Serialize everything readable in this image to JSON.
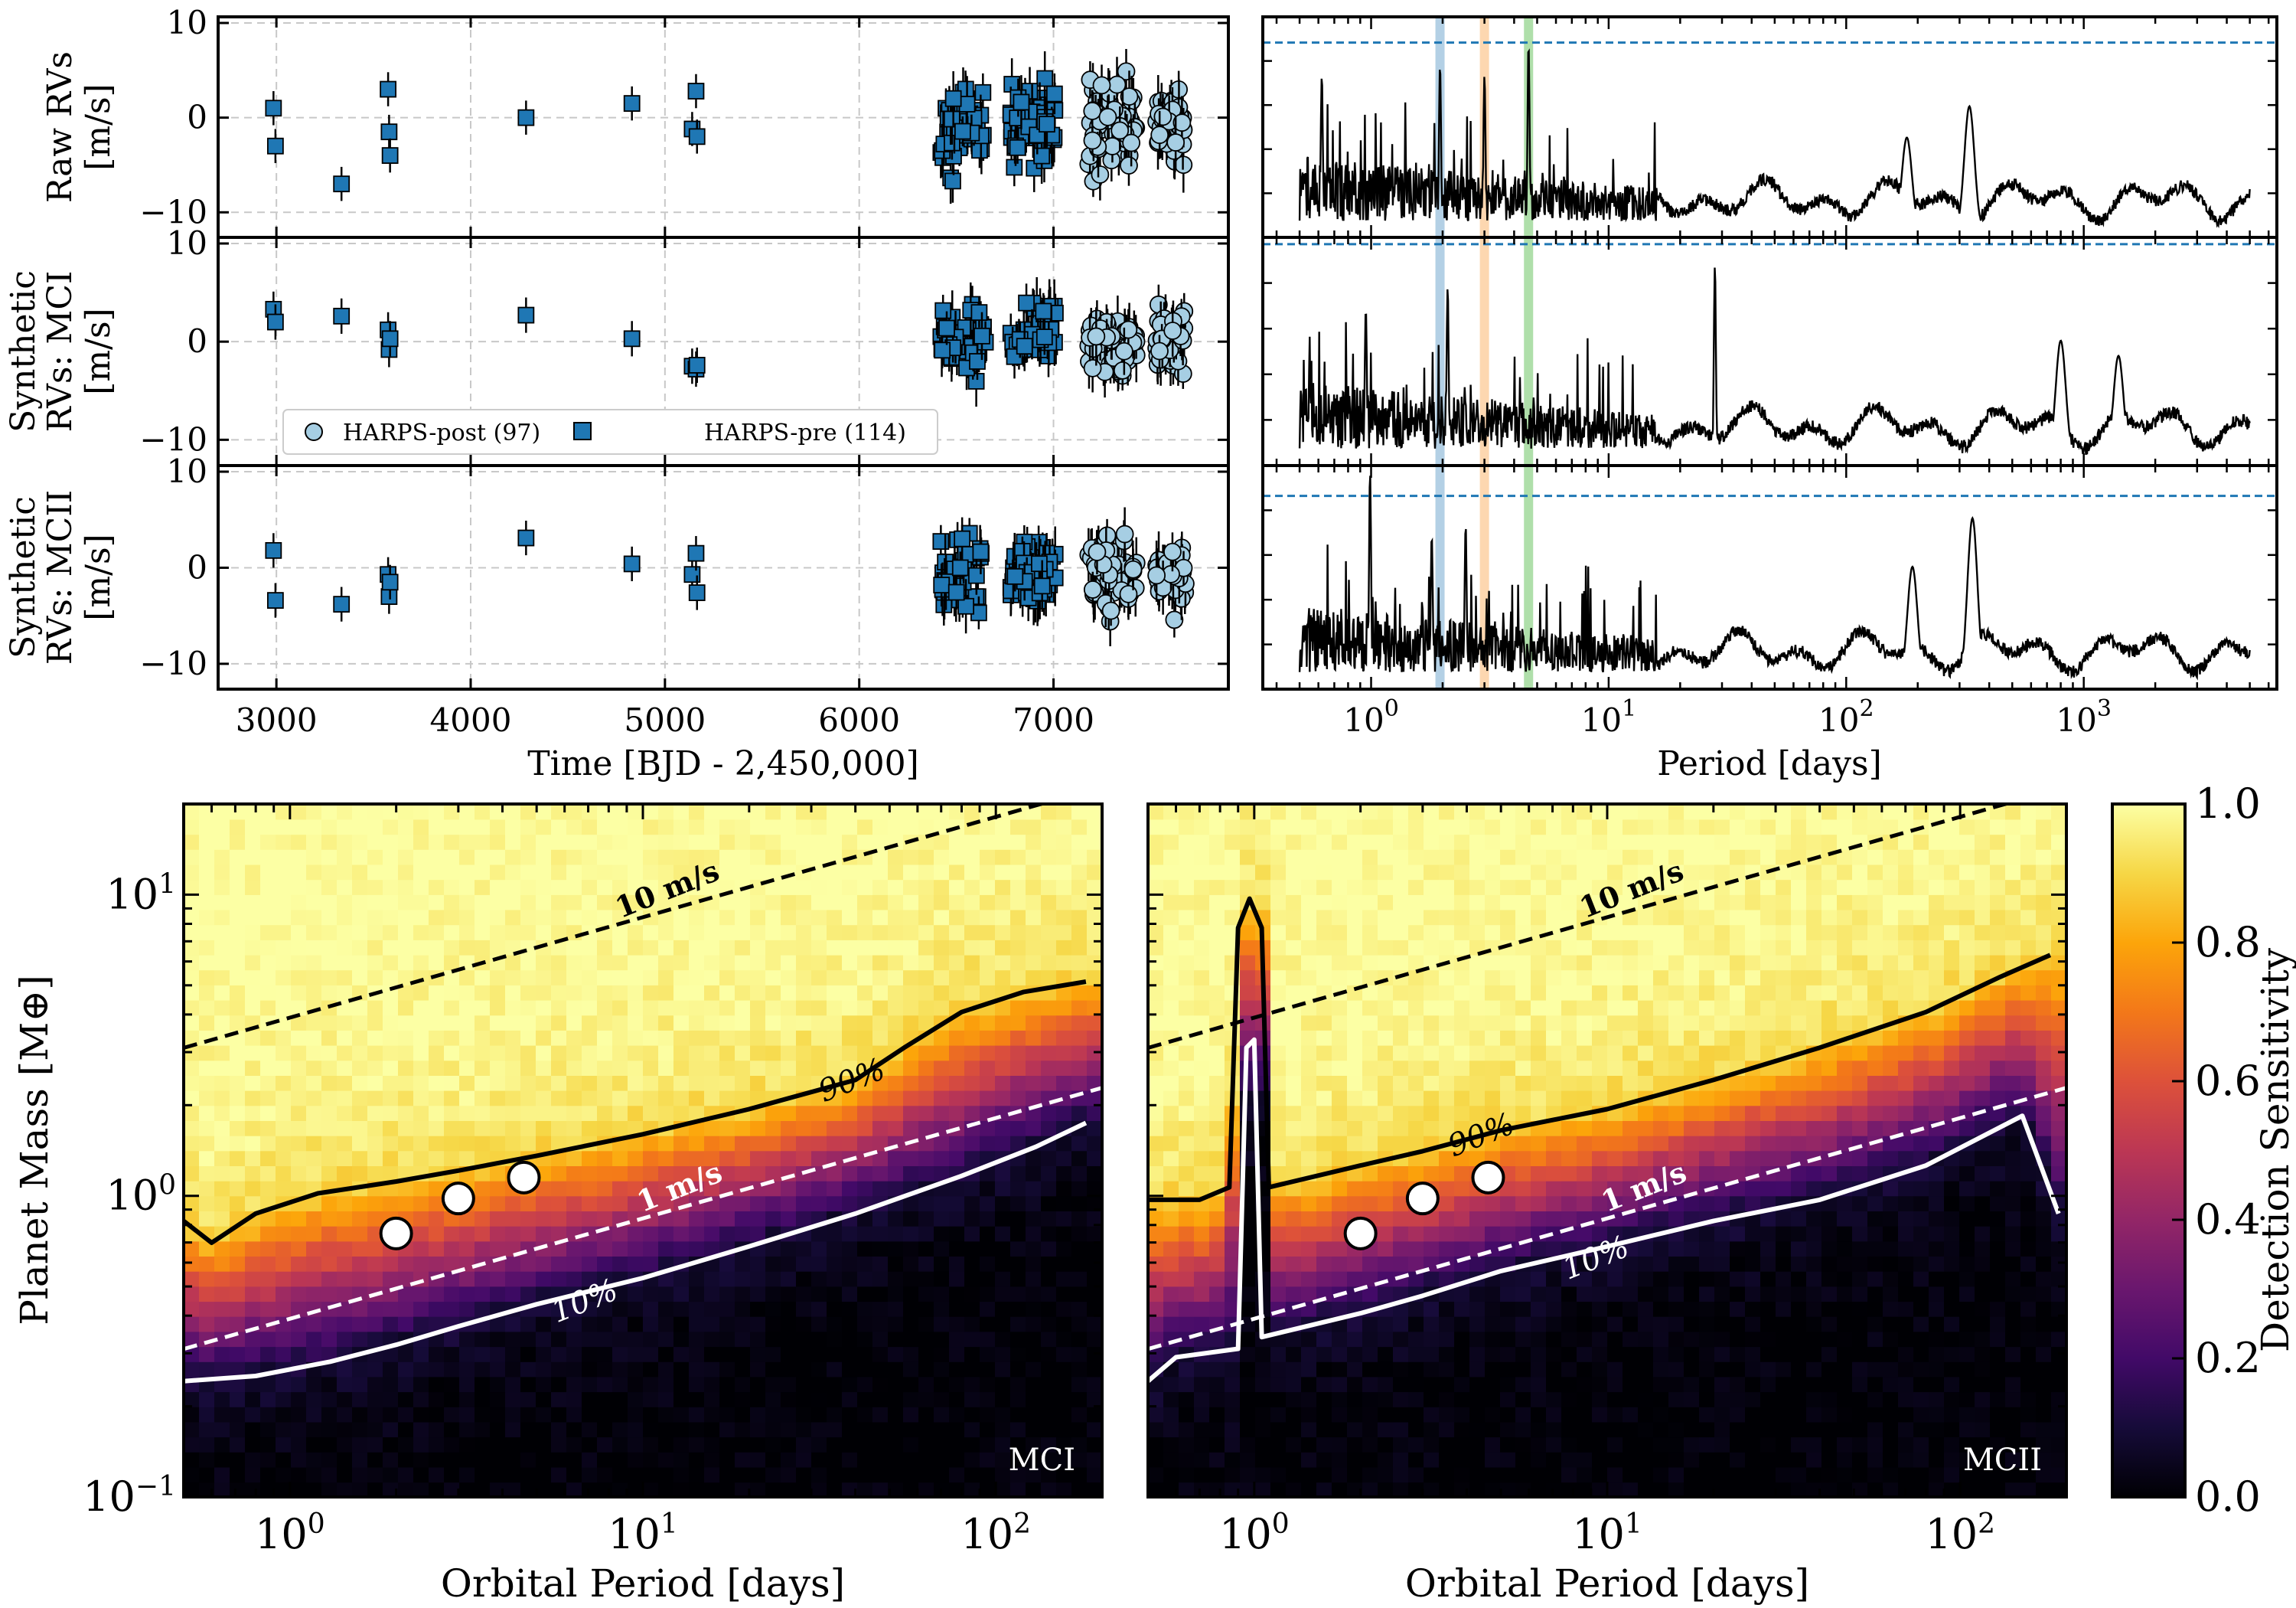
{
  "chart_data": [
    {
      "type": "scatter",
      "title": "",
      "xlabel": "Time [BJD - 2,450,000]",
      "xlim": [
        2700,
        7900
      ],
      "xticks": [
        3000,
        4000,
        5000,
        6000,
        7000
      ],
      "grid": true,
      "legend": {
        "position": "bottom-left",
        "entries": [
          "HARPS-post (97)",
          "HARPS-pre (114)"
        ]
      },
      "panels": [
        {
          "ylabel": [
            "Raw RVs",
            "[m/s]"
          ],
          "ylim": [
            -12,
            10
          ],
          "yticks": [
            -10,
            0,
            10
          ]
        },
        {
          "ylabel": [
            "Synthetic",
            "RVs: MCI",
            "[m/s]"
          ],
          "ylim": [
            -12,
            10
          ],
          "yticks": [
            -10,
            0,
            10
          ]
        },
        {
          "ylabel": [
            "Synthetic",
            "RVs: MCII",
            "[m/s]"
          ],
          "ylim": [
            -12,
            10
          ],
          "yticks": [
            -10,
            0,
            10
          ]
        }
      ],
      "series": [
        {
          "name": "HARPS-pre (114)",
          "marker": "square",
          "color": "#1f77b4",
          "x": [
            2985,
            2995,
            3335,
            3575,
            3580,
            3585,
            4285,
            4830,
            5140,
            5160,
            5165
          ],
          "raw": [
            1.0,
            -3.0,
            -7.0,
            3.0,
            -1.5,
            -4.0,
            0.0,
            1.5,
            -1.2,
            2.8,
            -2.0
          ],
          "mci": [
            3.3,
            2.0,
            2.6,
            1.2,
            -0.8,
            0.3,
            2.7,
            0.3,
            -2.5,
            -2.8,
            -2.4
          ],
          "mcii": [
            1.8,
            -3.4,
            -3.8,
            -0.7,
            -3.0,
            -1.5,
            3.1,
            0.4,
            -0.7,
            1.5,
            -2.6
          ],
          "clusters": [
            {
              "x_range": [
                6420,
                6650
              ],
              "n": 45,
              "raw_range": [
                -8,
                6
              ],
              "mci_range": [
                -5,
                5
              ],
              "mcii_range": [
                -6,
                5
              ]
            },
            {
              "x_range": [
                6780,
                7010
              ],
              "n": 48,
              "raw_range": [
                -7,
                6
              ],
              "mci_range": [
                -4,
                6
              ],
              "mcii_range": [
                -6,
                4
              ]
            }
          ]
        },
        {
          "name": "HARPS-post (97)",
          "marker": "circle",
          "color": "#a6cee3",
          "clusters": [
            {
              "x_range": [
                7180,
                7430
              ],
              "n": 55,
              "raw_range": [
                -8.5,
                6.5
              ],
              "mci_range": [
                -5,
                4.5
              ],
              "mcii_range": [
                -7,
                4.5
              ]
            },
            {
              "x_range": [
                7530,
                7680
              ],
              "n": 42,
              "raw_range": [
                -6,
                5
              ],
              "mci_range": [
                -4,
                4
              ],
              "mcii_range": [
                -7,
                4
              ]
            }
          ]
        }
      ]
    },
    {
      "type": "line",
      "title": "",
      "xlabel": "Period [days]",
      "xscale": "log",
      "xlim": [
        0.35,
        6500
      ],
      "xticks": [
        1,
        10,
        100,
        1000
      ],
      "xtick_labels": [
        [
          "10",
          "0"
        ],
        [
          "10",
          "1"
        ],
        [
          "10",
          "2"
        ],
        [
          "10",
          "3"
        ]
      ],
      "period_range": [
        0.5,
        5000
      ],
      "planet_periods": [
        1.95,
        3.0,
        4.6
      ],
      "planet_colors": [
        "#a6c8e0",
        "#fdd0a2",
        "#a1d99b"
      ],
      "fap_line_levels": [
        0.9,
        0.99,
        0.88
      ],
      "fap_color": "#1f77b4",
      "series": [
        {
          "name": "Raw RVs periodogram",
          "peaks": [
            [
              330,
              0.6
            ],
            [
              180,
              0.45
            ],
            [
              1.95,
              0.8
            ],
            [
              3.0,
              0.75
            ],
            [
              4.6,
              0.9
            ],
            [
              0.62,
              0.75
            ]
          ]
        },
        {
          "name": "MCI periodogram",
          "peaks": [
            [
              28,
              0.9
            ],
            [
              800,
              0.55
            ],
            [
              1400,
              0.48
            ],
            [
              2.1,
              0.8
            ],
            [
              0.95,
              0.7
            ]
          ]
        },
        {
          "name": "MCII periodogram",
          "peaks": [
            [
              0.99,
              1.0
            ],
            [
              340,
              0.78
            ],
            [
              190,
              0.55
            ],
            [
              2.5,
              0.75
            ],
            [
              1.8,
              0.7
            ]
          ]
        }
      ]
    },
    {
      "type": "heatmap",
      "title": "",
      "panels": [
        {
          "label": "MCI",
          "xlabel": "Orbital Period [days]",
          "ylabel": "Planet Mass [M⊕]",
          "xscale": "log",
          "yscale": "log",
          "xlim": [
            0.5,
            200
          ],
          "ylim": [
            0.1,
            20
          ],
          "contour_90": [
            [
              0.5,
              0.85
            ],
            [
              0.6,
              0.72
            ],
            [
              0.8,
              0.9
            ],
            [
              1.2,
              1.05
            ],
            [
              2,
              1.15
            ],
            [
              3,
              1.25
            ],
            [
              5,
              1.4
            ],
            [
              10,
              1.65
            ],
            [
              20,
              2.0
            ],
            [
              40,
              2.5
            ],
            [
              55,
              3.2
            ],
            [
              80,
              4.2
            ],
            [
              120,
              4.9
            ],
            [
              180,
              5.3
            ]
          ],
          "contour_10": [
            [
              0.5,
              0.25
            ],
            [
              0.8,
              0.26
            ],
            [
              1.3,
              0.29
            ],
            [
              2,
              0.33
            ],
            [
              3,
              0.38
            ],
            [
              5,
              0.45
            ],
            [
              10,
              0.55
            ],
            [
              20,
              0.7
            ],
            [
              40,
              0.9
            ],
            [
              80,
              1.2
            ],
            [
              130,
              1.5
            ],
            [
              180,
              1.8
            ]
          ],
          "has_spike": false
        },
        {
          "label": "MCII",
          "xlabel": "Orbital Period [days]",
          "xscale": "log",
          "yscale": "log",
          "xlim": [
            0.5,
            200
          ],
          "ylim": [
            0.1,
            20
          ],
          "contour_90": [
            [
              0.5,
              1.0
            ],
            [
              0.7,
              1.0
            ],
            [
              0.85,
              1.1
            ],
            [
              0.9,
              8
            ],
            [
              0.97,
              10
            ],
            [
              1.05,
              8
            ],
            [
              1.1,
              1.1
            ],
            [
              2,
              1.3
            ],
            [
              3,
              1.45
            ],
            [
              5,
              1.7
            ],
            [
              10,
              2.0
            ],
            [
              20,
              2.5
            ],
            [
              40,
              3.2
            ],
            [
              80,
              4.2
            ],
            [
              130,
              5.5
            ],
            [
              180,
              6.5
            ]
          ],
          "contour_10": [
            [
              0.5,
              0.25
            ],
            [
              0.6,
              0.3
            ],
            [
              0.9,
              0.32
            ],
            [
              0.95,
              3.2
            ],
            [
              1.0,
              3.4
            ],
            [
              1.05,
              0.35
            ],
            [
              2,
              0.42
            ],
            [
              3,
              0.48
            ],
            [
              5,
              0.58
            ],
            [
              10,
              0.7
            ],
            [
              20,
              0.85
            ],
            [
              40,
              1.0
            ],
            [
              80,
              1.3
            ],
            [
              150,
              1.9
            ],
            [
              190,
              0.9
            ]
          ],
          "has_spike": true
        }
      ],
      "xtick_labels": [
        [
          "10",
          "0"
        ],
        [
          "10",
          "1"
        ],
        [
          "10",
          "2"
        ]
      ],
      "ytick_labels": [
        [
          "10",
          "−1"
        ],
        [
          "10",
          "0"
        ],
        [
          "10",
          "1"
        ]
      ],
      "rv_lines": [
        {
          "label": "10 m/s",
          "mass_at_0p5d": 3.1,
          "color": "#000000"
        },
        {
          "label": "1 m/s",
          "mass_at_0p5d": 0.31,
          "color": "#ffffff"
        }
      ],
      "contour_labels": [
        "90%",
        "10%"
      ],
      "planets": [
        {
          "period": 2.0,
          "mass": 0.75
        },
        {
          "period": 3.0,
          "mass": 0.98
        },
        {
          "period": 4.6,
          "mass": 1.15
        }
      ],
      "colorbar": {
        "label": "Detection Sensitivity",
        "ticks": [
          "0.0",
          "0.2",
          "0.4",
          "0.6",
          "0.8",
          "1.0"
        ],
        "colormap": "inferno"
      }
    }
  ]
}
